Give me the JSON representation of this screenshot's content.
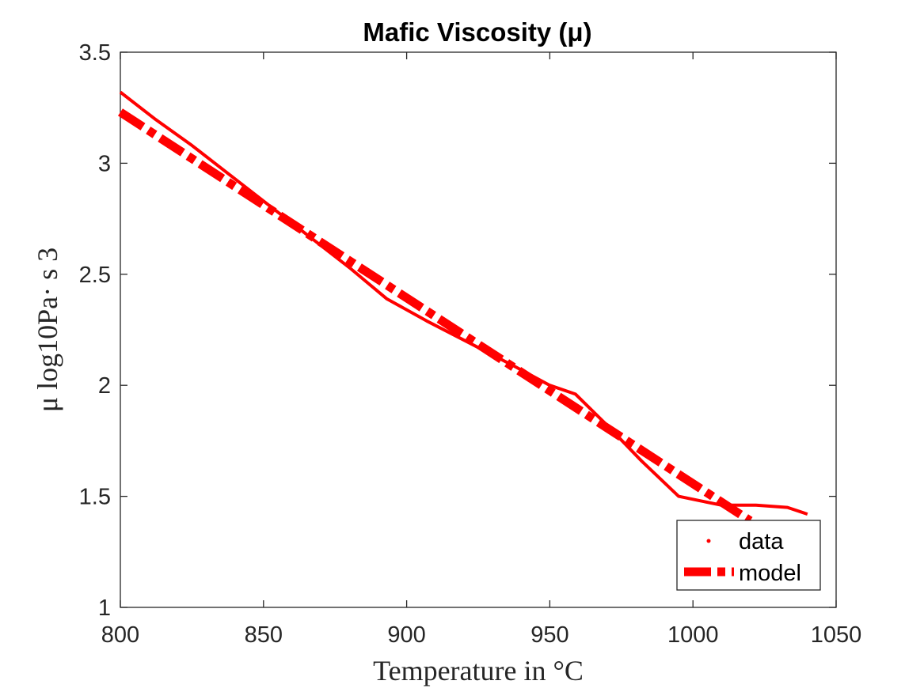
{
  "chart_data": {
    "type": "line",
    "title": "Mafic Viscosity (μ)",
    "xlabel": "Temperature in °C",
    "ylabel": "μ log10Pa· s 3",
    "xlim": [
      800,
      1050
    ],
    "ylim": [
      1,
      3.5
    ],
    "xticks": [
      "800",
      "850",
      "900",
      "950",
      "1000",
      "1050"
    ],
    "yticks": [
      "1",
      "1.5",
      "2",
      "2.5",
      "3",
      "3.5"
    ],
    "grid": false,
    "legend_position": "bottom-right",
    "series": [
      {
        "name": "data",
        "style": "solid",
        "color": "#ff0000",
        "x": [
          800,
          812,
          825,
          840,
          852,
          866,
          880,
          893,
          907,
          922,
          937,
          950,
          959,
          970,
          982,
          995,
          1010,
          1022,
          1033,
          1040
        ],
        "y": [
          3.32,
          3.2,
          3.08,
          2.93,
          2.81,
          2.67,
          2.53,
          2.39,
          2.29,
          2.19,
          2.09,
          2.0,
          1.96,
          1.82,
          1.66,
          1.5,
          1.46,
          1.46,
          1.45,
          1.42
        ]
      },
      {
        "name": "model",
        "style": "dashdot",
        "color": "#ff0000",
        "x": [
          800,
          1020
        ],
        "y": [
          3.23,
          1.39
        ]
      }
    ]
  }
}
